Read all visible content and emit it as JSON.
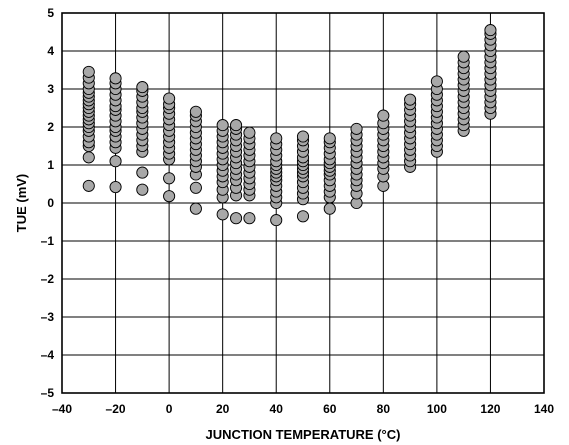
{
  "chart_data": {
    "type": "scatter",
    "title": "",
    "xlabel": "JUNCTION TEMPERATURE (°C)",
    "ylabel": "TUE (mV)",
    "xlim": [
      -40,
      140
    ],
    "ylim": [
      -5,
      5
    ],
    "x_ticks": [
      -40,
      -20,
      0,
      20,
      40,
      60,
      80,
      100,
      120,
      140
    ],
    "x_tick_labels": [
      "–40",
      "–20",
      "0",
      "20",
      "40",
      "60",
      "80",
      "100",
      "120",
      "140"
    ],
    "y_ticks": [
      -5,
      -4,
      -3,
      -2,
      -1,
      0,
      1,
      2,
      3,
      4,
      5
    ],
    "y_tick_labels": [
      "–5",
      "–4",
      "–3",
      "–2",
      "–1",
      "0",
      "1",
      "2",
      "3",
      "4",
      "5"
    ],
    "grid": true,
    "marker_fill": "#a8a8a8",
    "marker_stroke": "#000000",
    "series": [
      {
        "points": [
          [
            -30,
            0.45
          ],
          [
            -30,
            1.2
          ],
          [
            -30,
            1.5
          ],
          [
            -30,
            1.6
          ],
          [
            -30,
            1.75
          ],
          [
            -30,
            1.9
          ],
          [
            -30,
            2.0
          ],
          [
            -30,
            2.1
          ],
          [
            -30,
            2.2
          ],
          [
            -30,
            2.3
          ],
          [
            -30,
            2.4
          ],
          [
            -30,
            2.5
          ],
          [
            -30,
            2.6
          ],
          [
            -30,
            2.7
          ],
          [
            -30,
            2.8
          ],
          [
            -30,
            2.9
          ],
          [
            -30,
            3.0
          ],
          [
            -30,
            3.15
          ],
          [
            -30,
            3.3
          ],
          [
            -30,
            3.45
          ],
          [
            -20,
            0.42
          ],
          [
            -20,
            1.1
          ],
          [
            -20,
            1.45
          ],
          [
            -20,
            1.6
          ],
          [
            -20,
            1.75
          ],
          [
            -20,
            1.9
          ],
          [
            -20,
            2.0
          ],
          [
            -20,
            2.15
          ],
          [
            -20,
            2.3
          ],
          [
            -20,
            2.45
          ],
          [
            -20,
            2.55
          ],
          [
            -20,
            2.7
          ],
          [
            -20,
            2.85
          ],
          [
            -20,
            3.0
          ],
          [
            -20,
            3.15
          ],
          [
            -20,
            3.28
          ],
          [
            -10,
            0.35
          ],
          [
            -10,
            0.8
          ],
          [
            -10,
            1.35
          ],
          [
            -10,
            1.5
          ],
          [
            -10,
            1.65
          ],
          [
            -10,
            1.8
          ],
          [
            -10,
            1.95
          ],
          [
            -10,
            2.1
          ],
          [
            -10,
            2.25
          ],
          [
            -10,
            2.4
          ],
          [
            -10,
            2.5
          ],
          [
            -10,
            2.65
          ],
          [
            -10,
            2.8
          ],
          [
            -10,
            2.95
          ],
          [
            -10,
            3.05
          ],
          [
            0,
            0.18
          ],
          [
            0,
            0.65
          ],
          [
            0,
            1.15
          ],
          [
            0,
            1.3
          ],
          [
            0,
            1.45
          ],
          [
            0,
            1.6
          ],
          [
            0,
            1.75
          ],
          [
            0,
            1.9
          ],
          [
            0,
            2.05
          ],
          [
            0,
            2.2
          ],
          [
            0,
            2.35
          ],
          [
            0,
            2.5
          ],
          [
            0,
            2.6
          ],
          [
            0,
            2.75
          ],
          [
            10,
            -0.15
          ],
          [
            10,
            0.4
          ],
          [
            10,
            0.75
          ],
          [
            10,
            0.95
          ],
          [
            10,
            1.1
          ],
          [
            10,
            1.25
          ],
          [
            10,
            1.4
          ],
          [
            10,
            1.55
          ],
          [
            10,
            1.7
          ],
          [
            10,
            1.85
          ],
          [
            10,
            2.0
          ],
          [
            10,
            2.15
          ],
          [
            10,
            2.3
          ],
          [
            10,
            2.4
          ],
          [
            20,
            -0.3
          ],
          [
            20,
            0.15
          ],
          [
            20,
            0.35
          ],
          [
            20,
            0.55
          ],
          [
            20,
            0.7
          ],
          [
            20,
            0.85
          ],
          [
            20,
            1.0
          ],
          [
            20,
            1.15
          ],
          [
            20,
            1.3
          ],
          [
            20,
            1.45
          ],
          [
            20,
            1.6
          ],
          [
            20,
            1.75
          ],
          [
            20,
            1.9
          ],
          [
            20,
            2.05
          ],
          [
            25,
            -0.4
          ],
          [
            25,
            0.2
          ],
          [
            25,
            0.4
          ],
          [
            25,
            0.6
          ],
          [
            25,
            0.75
          ],
          [
            25,
            0.9
          ],
          [
            25,
            1.05
          ],
          [
            25,
            1.2
          ],
          [
            25,
            1.35
          ],
          [
            25,
            1.5
          ],
          [
            25,
            1.65
          ],
          [
            25,
            1.8
          ],
          [
            25,
            1.95
          ],
          [
            25,
            2.05
          ],
          [
            30,
            -0.4
          ],
          [
            30,
            0.2
          ],
          [
            30,
            0.35
          ],
          [
            30,
            0.5
          ],
          [
            30,
            0.65
          ],
          [
            30,
            0.8
          ],
          [
            30,
            0.95
          ],
          [
            30,
            1.1
          ],
          [
            30,
            1.25
          ],
          [
            30,
            1.4
          ],
          [
            30,
            1.55
          ],
          [
            30,
            1.7
          ],
          [
            30,
            1.85
          ],
          [
            40,
            -0.45
          ],
          [
            40,
            0.0
          ],
          [
            40,
            0.15
          ],
          [
            40,
            0.3
          ],
          [
            40,
            0.45
          ],
          [
            40,
            0.6
          ],
          [
            40,
            0.7
          ],
          [
            40,
            0.8
          ],
          [
            40,
            0.9
          ],
          [
            40,
            1.0
          ],
          [
            40,
            1.1
          ],
          [
            40,
            1.25
          ],
          [
            40,
            1.4
          ],
          [
            40,
            1.55
          ],
          [
            40,
            1.7
          ],
          [
            50,
            -0.35
          ],
          [
            50,
            0.1
          ],
          [
            50,
            0.25
          ],
          [
            50,
            0.4
          ],
          [
            50,
            0.55
          ],
          [
            50,
            0.7
          ],
          [
            50,
            0.8
          ],
          [
            50,
            0.9
          ],
          [
            50,
            1.0
          ],
          [
            50,
            1.1
          ],
          [
            50,
            1.2
          ],
          [
            50,
            1.35
          ],
          [
            50,
            1.5
          ],
          [
            50,
            1.65
          ],
          [
            50,
            1.75
          ],
          [
            60,
            -0.15
          ],
          [
            60,
            0.15
          ],
          [
            60,
            0.3
          ],
          [
            60,
            0.45
          ],
          [
            60,
            0.6
          ],
          [
            60,
            0.75
          ],
          [
            60,
            0.85
          ],
          [
            60,
            0.95
          ],
          [
            60,
            1.05
          ],
          [
            60,
            1.15
          ],
          [
            60,
            1.3
          ],
          [
            60,
            1.45
          ],
          [
            60,
            1.6
          ],
          [
            60,
            1.7
          ],
          [
            70,
            0.0
          ],
          [
            70,
            0.25
          ],
          [
            70,
            0.45
          ],
          [
            70,
            0.6
          ],
          [
            70,
            0.75
          ],
          [
            70,
            0.9
          ],
          [
            70,
            1.05
          ],
          [
            70,
            1.2
          ],
          [
            70,
            1.35
          ],
          [
            70,
            1.5
          ],
          [
            70,
            1.65
          ],
          [
            70,
            1.8
          ],
          [
            70,
            1.95
          ],
          [
            80,
            0.45
          ],
          [
            80,
            0.7
          ],
          [
            80,
            0.9
          ],
          [
            80,
            1.05
          ],
          [
            80,
            1.2
          ],
          [
            80,
            1.35
          ],
          [
            80,
            1.5
          ],
          [
            80,
            1.65
          ],
          [
            80,
            1.8
          ],
          [
            80,
            1.95
          ],
          [
            80,
            2.1
          ],
          [
            80,
            2.3
          ],
          [
            90,
            0.95
          ],
          [
            90,
            1.1
          ],
          [
            90,
            1.25
          ],
          [
            90,
            1.4
          ],
          [
            90,
            1.55
          ],
          [
            90,
            1.7
          ],
          [
            90,
            1.85
          ],
          [
            90,
            2.0
          ],
          [
            90,
            2.15
          ],
          [
            90,
            2.3
          ],
          [
            90,
            2.45
          ],
          [
            90,
            2.6
          ],
          [
            90,
            2.72
          ],
          [
            100,
            1.35
          ],
          [
            100,
            1.5
          ],
          [
            100,
            1.65
          ],
          [
            100,
            1.8
          ],
          [
            100,
            1.95
          ],
          [
            100,
            2.1
          ],
          [
            100,
            2.25
          ],
          [
            100,
            2.4
          ],
          [
            100,
            2.55
          ],
          [
            100,
            2.7
          ],
          [
            100,
            2.85
          ],
          [
            100,
            3.0
          ],
          [
            100,
            3.2
          ],
          [
            110,
            1.9
          ],
          [
            110,
            2.05
          ],
          [
            110,
            2.2
          ],
          [
            110,
            2.35
          ],
          [
            110,
            2.5
          ],
          [
            110,
            2.65
          ],
          [
            110,
            2.8
          ],
          [
            110,
            2.95
          ],
          [
            110,
            3.1
          ],
          [
            110,
            3.25
          ],
          [
            110,
            3.4
          ],
          [
            110,
            3.55
          ],
          [
            110,
            3.7
          ],
          [
            110,
            3.85
          ],
          [
            120,
            2.35
          ],
          [
            120,
            2.5
          ],
          [
            120,
            2.65
          ],
          [
            120,
            2.8
          ],
          [
            120,
            2.95
          ],
          [
            120,
            3.1
          ],
          [
            120,
            3.25
          ],
          [
            120,
            3.4
          ],
          [
            120,
            3.55
          ],
          [
            120,
            3.7
          ],
          [
            120,
            3.85
          ],
          [
            120,
            4.0
          ],
          [
            120,
            4.15
          ],
          [
            120,
            4.3
          ],
          [
            120,
            4.45
          ],
          [
            120,
            4.55
          ]
        ]
      }
    ]
  }
}
